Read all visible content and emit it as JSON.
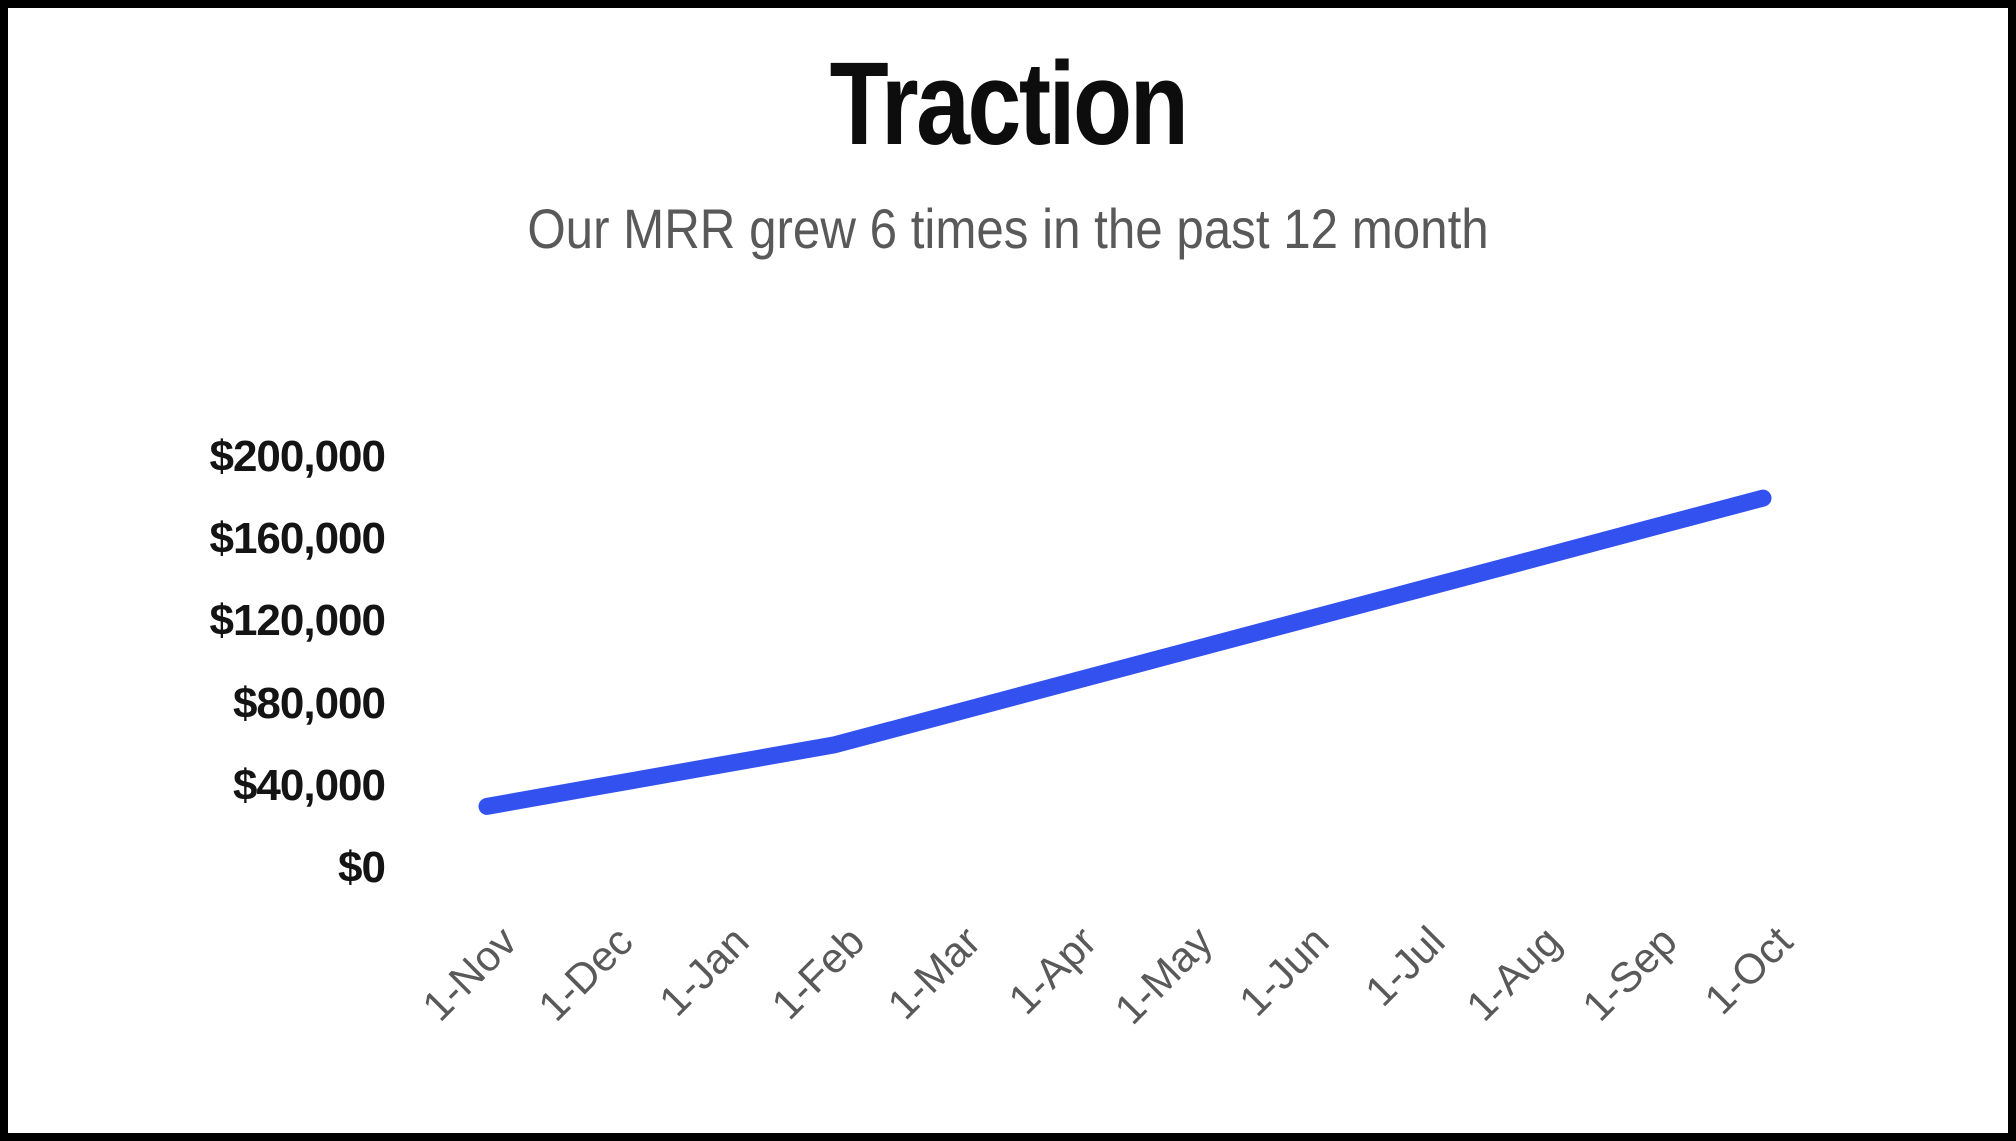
{
  "chart_data": {
    "type": "line",
    "title": "Traction",
    "subtitle": "Our MRR grew 6 times in the past 12 month",
    "categories": [
      "1-Nov",
      "1-Dec",
      "1-Jan",
      "1-Feb",
      "1-Mar",
      "1-Apr",
      "1-May",
      "1-Jun",
      "1-Jul",
      "1-Aug",
      "1-Sep",
      "1-Oct"
    ],
    "series": [
      {
        "name": "MRR",
        "values": [
          30000,
          40000,
          50000,
          60000,
          75000,
          90000,
          105000,
          120000,
          135000,
          150000,
          165000,
          180000
        ]
      }
    ],
    "y_ticks": [
      {
        "value": 200000,
        "label": "$200,000"
      },
      {
        "value": 160000,
        "label": "$160,000"
      },
      {
        "value": 120000,
        "label": "$120,000"
      },
      {
        "value": 80000,
        "label": "$80,000"
      },
      {
        "value": 40000,
        "label": "$40,000"
      },
      {
        "value": 0,
        "label": "$0"
      }
    ],
    "ylim": [
      0,
      200000
    ],
    "xlabel": "",
    "ylabel": "",
    "grid": false,
    "legend": "none",
    "line_color": "#3351ee",
    "label_color": "#595959",
    "tick_label_color": "#141414",
    "title_color": "#0d0d0d",
    "subtitle_color": "#595959"
  }
}
